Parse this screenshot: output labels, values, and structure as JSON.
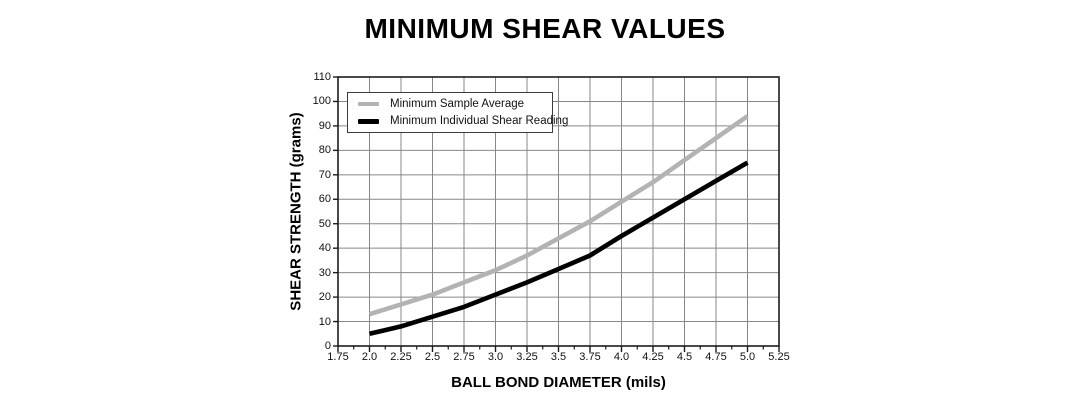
{
  "chart": {
    "title": "MINIMUM SHEAR VALUES",
    "legend": {
      "items": [
        {
          "label": "Minimum Sample Average",
          "color": "#b3b3b3"
        },
        {
          "label": "Minimum Individual Shear Reading",
          "color": "#000000"
        }
      ]
    },
    "x_axis": {
      "title": "BALL BOND DIAMETER (mils)",
      "tick_labels": [
        "1.75",
        "2.0",
        "2.25",
        "2.5",
        "2.75",
        "3.0",
        "3.25",
        "3.5",
        "3.75",
        "4.0",
        "4.25",
        "4.5",
        "4.75",
        "5.0",
        "5.25"
      ]
    },
    "y_axis": {
      "title": "SHEAR STRENGTH (grams)",
      "tick_labels": [
        "0",
        "10",
        "20",
        "30",
        "40",
        "50",
        "60",
        "70",
        "80",
        "90",
        "100",
        "110"
      ]
    }
  },
  "chart_data": {
    "type": "line",
    "title": "MINIMUM SHEAR VALUES",
    "xlabel": "BALL BOND DIAMETER (mils)",
    "ylabel": "SHEAR STRENGTH (grams)",
    "xlim": [
      1.75,
      5.25
    ],
    "ylim": [
      0,
      110
    ],
    "x_major_step": 0.25,
    "x_minor_step": 0.125,
    "y_major_step": 10,
    "grid": true,
    "legend_position": "top-left-inside",
    "x": [
      2.0,
      2.25,
      2.5,
      2.75,
      3.0,
      3.25,
      3.5,
      3.75,
      4.0,
      4.25,
      4.5,
      4.75,
      5.0
    ],
    "series": [
      {
        "name": "Minimum Sample Average",
        "color": "#b3b3b3",
        "values": [
          13,
          17,
          21,
          26,
          31,
          37,
          44,
          51,
          59,
          67,
          76,
          85,
          94
        ]
      },
      {
        "name": "Minimum Individual Shear Reading",
        "color": "#000000",
        "values": [
          5,
          8,
          12,
          16,
          21,
          26,
          31.5,
          37,
          45,
          52.5,
          60,
          67.5,
          75
        ]
      }
    ],
    "colors": {
      "gridline": "#878787",
      "axis": "#1c1c1c",
      "background": "#ffffff"
    }
  }
}
